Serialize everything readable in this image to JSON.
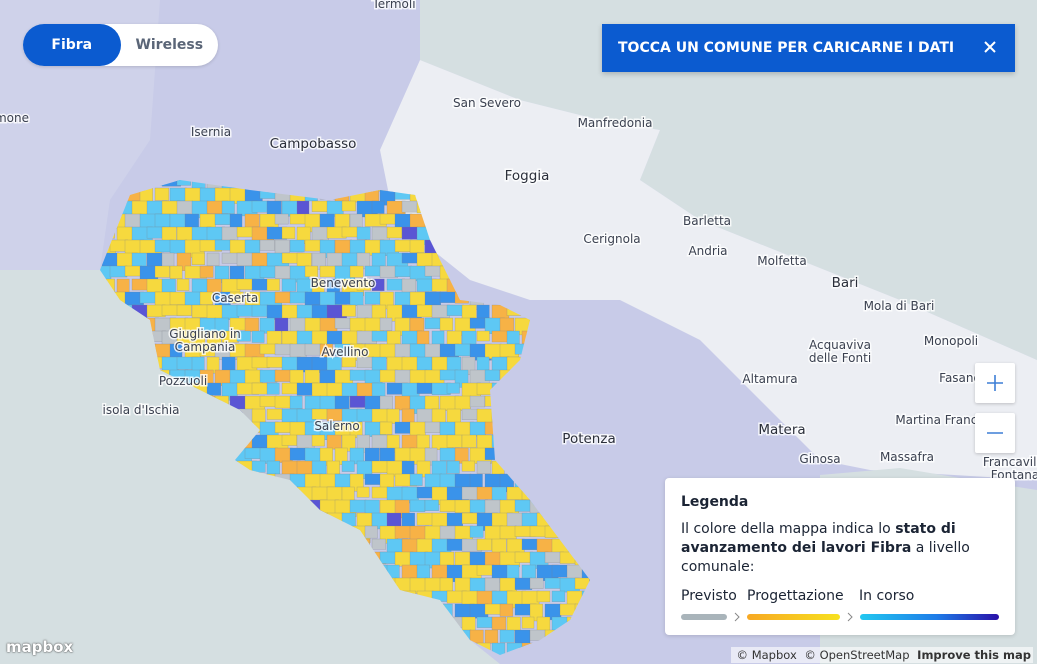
{
  "mode_toggle": {
    "options": [
      "Fibra",
      "Wireless"
    ]
  },
  "banner": {
    "text": "TOCCA UN COMUNE PER CARICARNE I DATI"
  },
  "map": {
    "places": [
      [
        "mone"
      ],
      [
        "Termoli"
      ],
      [
        "San Severo"
      ],
      [
        "Manfredonia"
      ],
      [
        "Isernia"
      ],
      [
        "Campobasso"
      ],
      [
        "Foggia"
      ],
      [
        "Barletta"
      ],
      [
        "Cerignola"
      ],
      [
        "Andria"
      ],
      [
        "Molfetta"
      ],
      [
        "Bari"
      ],
      [
        "Mola di Bari"
      ],
      [
        "Monopoli"
      ],
      [
        "Acquaviva",
        "delle Fonti"
      ],
      [
        "Altamura"
      ],
      [
        "Fasano"
      ],
      [
        "Martina Franca"
      ],
      [
        "Matera"
      ],
      [
        "Ginosa"
      ],
      [
        "Massafra"
      ],
      [
        "Francavilla",
        "Fontana"
      ],
      [
        "Potenza"
      ],
      [
        "Benevento"
      ],
      [
        "Caserta"
      ],
      [
        "Giugliano in",
        "Campania"
      ],
      [
        "Avellino"
      ],
      [
        "Pozzuoli"
      ],
      [
        "isola d'Ischia"
      ],
      [
        "Salerno"
      ]
    ]
  },
  "legend": {
    "title": "Legenda",
    "description": {
      "intro": "Il colore della mappa indica lo",
      "emphasis": "stato di avanzamento dei lavori Fibra",
      "outro": "a livello comunale:"
    },
    "stages": [
      "Previsto",
      "Progettazione",
      "In corso"
    ]
  },
  "attribution": {
    "logo": "mapbox",
    "links": [
      "© Mapbox",
      "© OpenStreetMap",
      "Improve this map"
    ]
  }
}
